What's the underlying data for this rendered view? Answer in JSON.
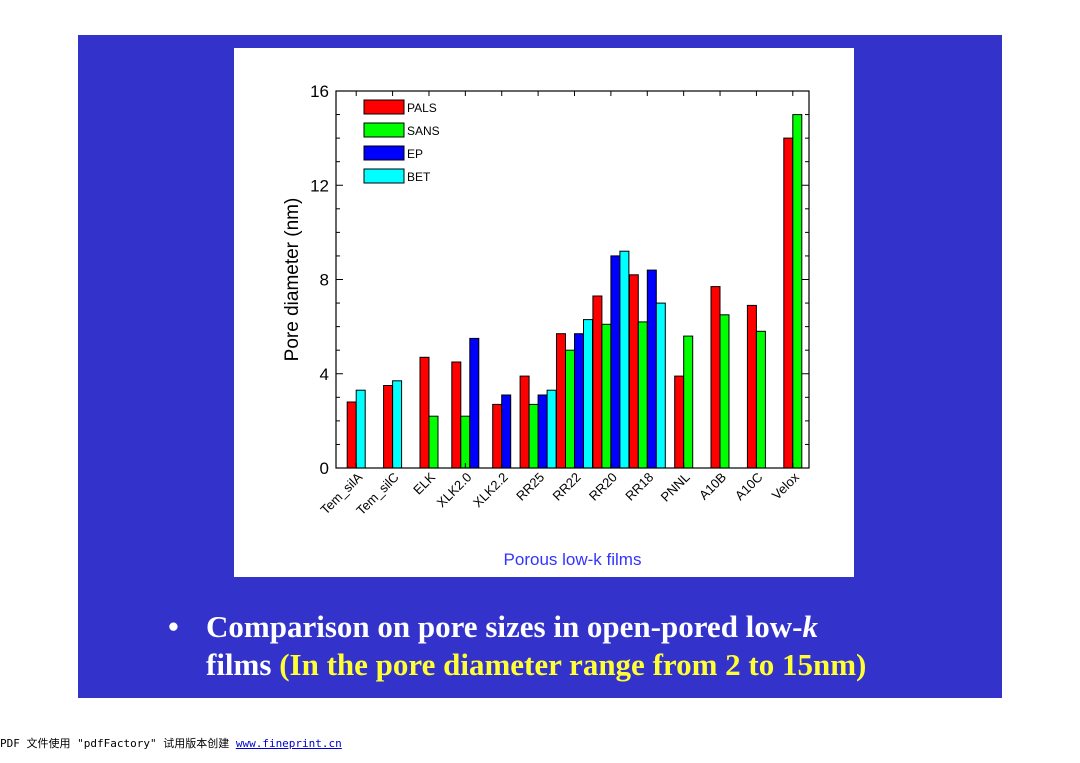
{
  "slide": {
    "caption": {
      "bullet": "•",
      "line1": "Comparison on pore sizes in open-pored low-",
      "line1_italic": "k",
      "line2_prefix": "films ",
      "line2_highlight": "(In the pore diameter range from 2 to 15nm)"
    },
    "colors": {
      "background": "#3333cc",
      "highlight": "#ffff33",
      "caption_text": "#ffffff"
    }
  },
  "footer": {
    "text": "PDF 文件使用 \"pdfFactory\" 试用版本创建 ",
    "link": "www.fineprint.cn"
  },
  "chart_data": {
    "type": "bar",
    "xlabel": "Porous low-k films",
    "ylabel": "Pore diameter (nm)",
    "ylim": [
      0,
      16
    ],
    "yticks": [
      0,
      4,
      8,
      12,
      16
    ],
    "grid": false,
    "legend_position": "top-left",
    "categories": [
      "Tem_silA",
      "Tem_silC",
      "ELK",
      "XLK2.0",
      "XLK2.2",
      "RR25",
      "RR22",
      "RR20",
      "RR18",
      "PNNL",
      "A10B",
      "A10C",
      "Velox"
    ],
    "series": [
      {
        "name": "PALS",
        "color": "#ff0000",
        "values": [
          2.8,
          3.5,
          4.7,
          4.5,
          2.7,
          3.9,
          5.7,
          7.3,
          8.2,
          3.9,
          7.7,
          6.9,
          14.0
        ]
      },
      {
        "name": "SANS",
        "color": "#00ff00",
        "values": [
          null,
          null,
          2.2,
          2.2,
          null,
          2.7,
          5.0,
          6.1,
          6.2,
          5.6,
          6.5,
          5.8,
          15.0
        ]
      },
      {
        "name": "EP",
        "color": "#0000ff",
        "values": [
          null,
          null,
          null,
          5.5,
          3.1,
          3.1,
          5.7,
          9.0,
          8.4,
          null,
          null,
          null,
          null
        ]
      },
      {
        "name": "BET",
        "color": "#00ffff",
        "values": [
          3.3,
          3.7,
          null,
          null,
          null,
          3.3,
          6.3,
          9.2,
          7.0,
          null,
          null,
          null,
          null
        ]
      }
    ]
  }
}
